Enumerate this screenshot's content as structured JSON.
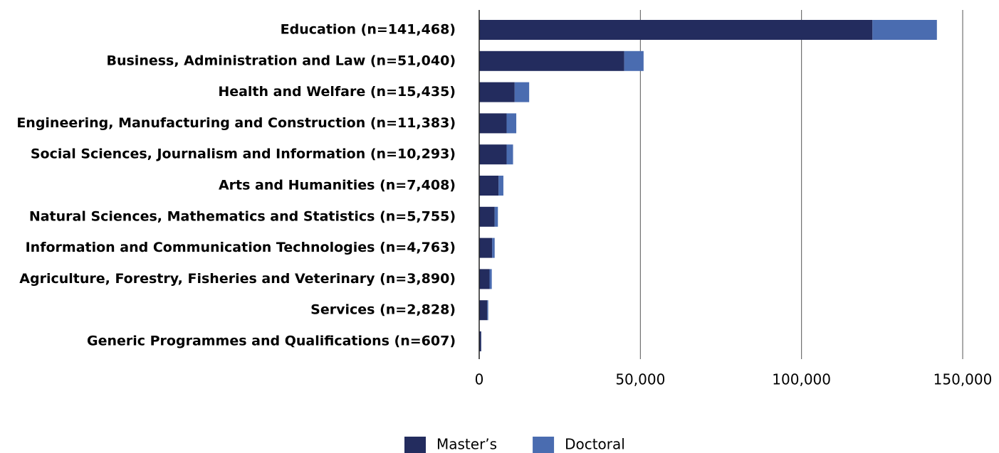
{
  "chart_data": {
    "type": "stacked-barh",
    "categories": [
      "Education (n=141,468)",
      "Business, Administration and Law (n=51,040)",
      "Health and Welfare (n=15,435)",
      "Engineering, Manufacturing and Construction (n=11,383)",
      "Social Sciences, Journalism and Information (n=10,293)",
      "Arts and Humanities (n=7,408)",
      "Natural Sciences, Mathematics and Statistics (n=5,755)",
      "Information and Communication Technologies (n=4,763)",
      "Agriculture, Forestry, Fisheries and Veterinary (n=3,890)",
      "Services (n=2,828)",
      "Generic Programmes and Qualifications (n=607)"
    ],
    "series": [
      {
        "name": "Master’s",
        "color": "#232c5e",
        "values": [
          122000,
          45000,
          11000,
          8500,
          8500,
          6000,
          4800,
          4000,
          3200,
          2500,
          600
        ]
      },
      {
        "name": "Doctoral",
        "color": "#4a6cb0",
        "values": [
          20000,
          6000,
          4500,
          3000,
          2000,
          1500,
          1000,
          800,
          700,
          300,
          50
        ]
      }
    ],
    "xlim": [
      0,
      150000
    ],
    "xticks": [
      0,
      {
        "value": 50000,
        "label": "50,000"
      },
      {
        "value": 100000,
        "label": "100,000"
      },
      {
        "value": 150000,
        "label": "150,000"
      }
    ],
    "grid": true,
    "legend": "bottom"
  }
}
